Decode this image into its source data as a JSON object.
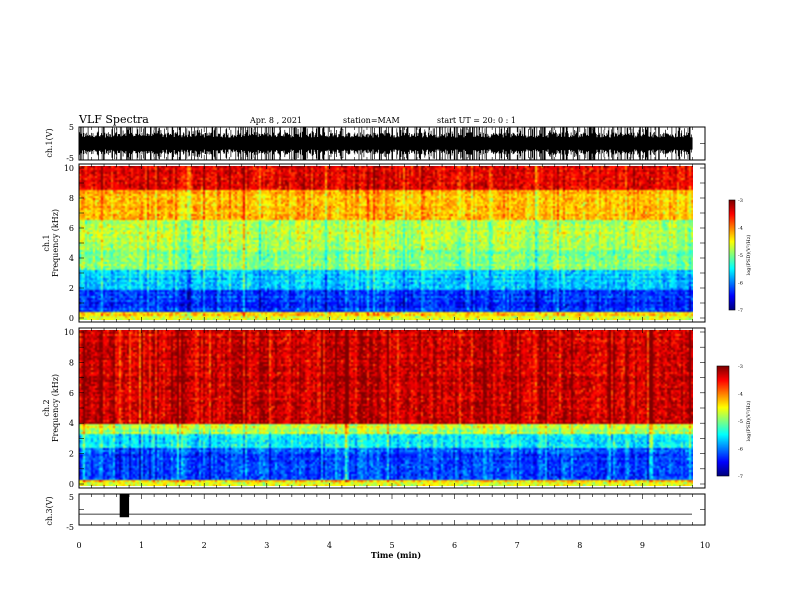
{
  "header": {
    "title": "VLF Spectra",
    "date": "Apr. 8 , 2021",
    "station": "station=MAM",
    "start": "start UT = 20: 0 : 1"
  },
  "chart_data": [
    {
      "type": "line",
      "panel": "ch1-waveform",
      "ylabel": "ch.1(V)",
      "ylim": [
        -5,
        5
      ],
      "y_ticks": [
        "5",
        "-5"
      ],
      "description_values": {
        "amplitude_range": [
          -5,
          5
        ],
        "duration_min": 9.8
      }
    },
    {
      "type": "heatmap",
      "panel": "ch1-spectrogram",
      "ylabel_lines": [
        "ch.1",
        "Frequency (kHz)"
      ],
      "ylim": [
        0,
        10
      ],
      "y_ticks": [
        "0",
        "2",
        "4",
        "6",
        "8",
        "10"
      ],
      "xlim": [
        0,
        9.8
      ],
      "bands": [
        {
          "from_khz": 0,
          "to_khz": 0.5,
          "level": -4.3
        },
        {
          "from_khz": 0.5,
          "to_khz": 2.0,
          "level": -6.3
        },
        {
          "from_khz": 2.0,
          "to_khz": 3.3,
          "level": -5.7
        },
        {
          "from_khz": 3.3,
          "to_khz": 4.5,
          "level": -5.0
        },
        {
          "from_khz": 4.5,
          "to_khz": 6.5,
          "level": -4.8
        },
        {
          "from_khz": 6.5,
          "to_khz": 8.5,
          "level": -4.2
        },
        {
          "from_khz": 8.5,
          "to_khz": 10,
          "level": -3.4
        }
      ],
      "colorbar": {
        "label": "log(PSD)(V²/Hz)",
        "ticks": [
          "-3",
          "-4",
          "-5",
          "-6",
          "-7"
        ],
        "range": [
          -7,
          -3
        ]
      }
    },
    {
      "type": "heatmap",
      "panel": "ch2-spectrogram",
      "ylabel_lines": [
        "ch.2",
        "Frequency (kHz)"
      ],
      "ylim": [
        0,
        10
      ],
      "y_ticks": [
        "0",
        "2",
        "4",
        "6",
        "8",
        "10"
      ],
      "xlim": [
        0,
        9.8
      ],
      "bands": [
        {
          "from_khz": 0,
          "to_khz": 0.4,
          "level": -4.2
        },
        {
          "from_khz": 0.4,
          "to_khz": 2.5,
          "level": -6.2
        },
        {
          "from_khz": 2.5,
          "to_khz": 3.3,
          "level": -5.5
        },
        {
          "from_khz": 3.3,
          "to_khz": 4.0,
          "level": -4.8
        },
        {
          "from_khz": 4.0,
          "to_khz": 10,
          "level": -3.3
        }
      ],
      "colorbar": {
        "label": "log(PSD)(V²/Hz)",
        "ticks": [
          "-3",
          "-4",
          "-5",
          "-6",
          "-7"
        ],
        "range": [
          -7,
          -3
        ]
      }
    },
    {
      "type": "line",
      "panel": "ch3-signal",
      "ylabel": "ch.3(V)",
      "ylim": [
        -5,
        5
      ],
      "y_ticks": [
        "5",
        "-5"
      ],
      "baseline_v": -1.5,
      "pulse": {
        "start_min": 0.65,
        "end_min": 0.8,
        "low_v": -2.5,
        "high_v": 5
      }
    }
  ],
  "x_axis": {
    "label": "Time (min)",
    "ticks": [
      "0",
      "1",
      "2",
      "3",
      "4",
      "5",
      "6",
      "7",
      "8",
      "9",
      "10"
    ],
    "xlim": [
      0,
      10
    ]
  }
}
